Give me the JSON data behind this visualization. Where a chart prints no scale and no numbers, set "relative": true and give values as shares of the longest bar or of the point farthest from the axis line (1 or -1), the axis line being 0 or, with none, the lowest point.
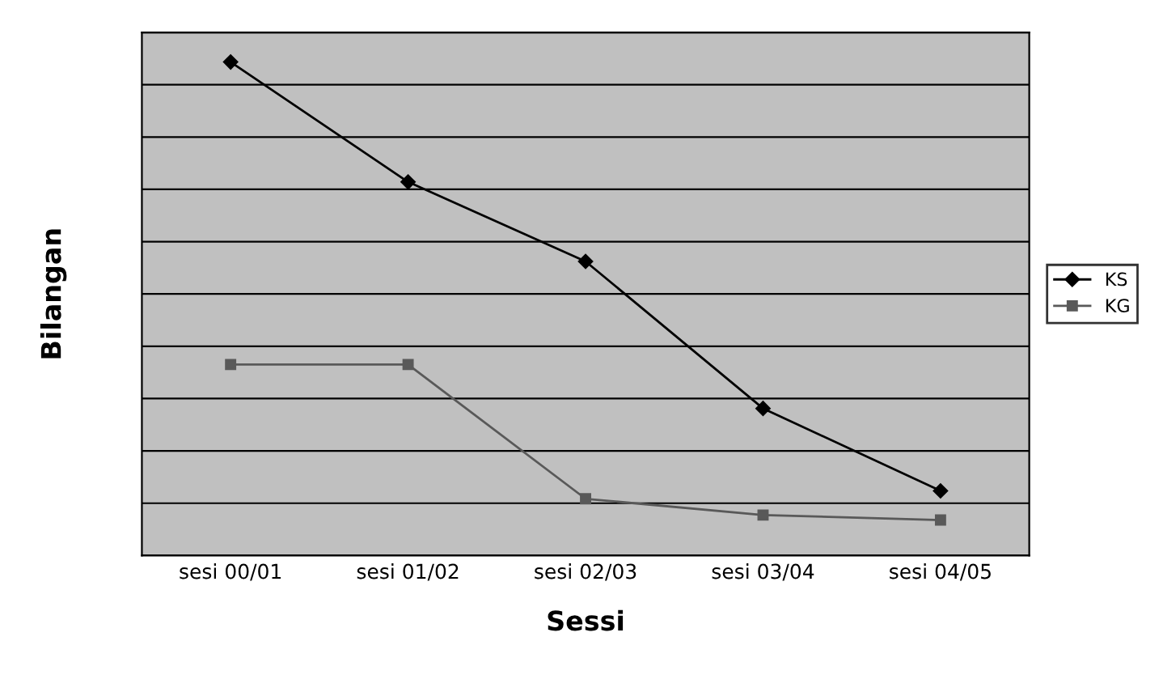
{
  "chart_data": {
    "type": "line",
    "relative": true,
    "xlabel": "Sessi",
    "ylabel": "Bilangan",
    "categories": [
      "sesi 00/01",
      "sesi 01/02",
      "sesi 02/03",
      "sesi 03/04",
      "sesi 04/05"
    ],
    "series": [
      {
        "name": "KS",
        "color": "#000000",
        "marker": "diamond",
        "values": [
          1,
          0.757,
          0.596,
          0.298,
          0.131
        ]
      },
      {
        "name": "KG",
        "color": "#595959",
        "marker": "square",
        "values": [
          0.387,
          0.387,
          0.115,
          0.082,
          0.072
        ]
      }
    ],
    "grid": "y",
    "legend": "right"
  }
}
